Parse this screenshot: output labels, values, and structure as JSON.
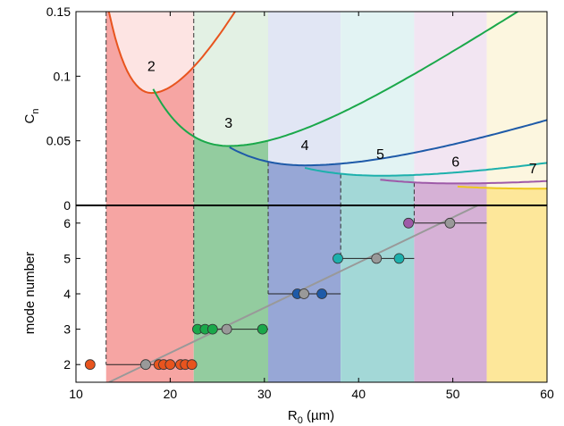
{
  "chart_data": {
    "type": "scatter",
    "x_axis": {
      "label_main": "R",
      "label_sub": "0",
      "label_unit": " (µm)",
      "range": [
        10,
        60
      ],
      "ticks": [
        10,
        20,
        30,
        40,
        50,
        60
      ],
      "tick_labels": [
        "10",
        "20",
        "30",
        "40",
        "50",
        "60"
      ]
    },
    "top_panel": {
      "y_label_main": "C",
      "y_label_sub": "n",
      "y_range": [
        0,
        0.15
      ],
      "y_ticks": [
        0,
        0.05,
        0.1,
        0.15
      ],
      "y_tick_labels": [
        "0",
        "0.05",
        "0.1",
        "0.15"
      ]
    },
    "bottom_panel": {
      "y_label": "mode number",
      "y_range": [
        1.5,
        6.5
      ],
      "y_ticks": [
        2,
        3,
        4,
        5,
        6
      ],
      "y_tick_labels": [
        "2",
        "3",
        "4",
        "5",
        "6"
      ]
    },
    "bands": [
      {
        "mode": 2,
        "label": "2",
        "x_start": 13.2,
        "x_end": 22.5,
        "color": "#f6a5a3",
        "light": "#fde4e3",
        "curve_color": "#e8541e",
        "min_x": 18.0,
        "min_y": 0.087,
        "label_x": 18.0,
        "label_y": 0.104,
        "dot_color": "#e8541e"
      },
      {
        "mode": 3,
        "label": "3",
        "x_start": 22.5,
        "x_end": 30.4,
        "color": "#93cc9f",
        "light": "#e3f1e4",
        "curve_color": "#1aa84a",
        "min_x": 26.2,
        "min_y": 0.046,
        "label_x": 26.2,
        "label_y": 0.06,
        "dot_color": "#1aa84a"
      },
      {
        "mode": 4,
        "label": "4",
        "x_start": 30.4,
        "x_end": 38.1,
        "color": "#97a7d6",
        "light": "#e1e6f4",
        "curve_color": "#1e5aa8",
        "min_x": 34.3,
        "min_y": 0.031,
        "label_x": 34.3,
        "label_y": 0.043,
        "dot_color": "#1e5aa8"
      },
      {
        "mode": 5,
        "label": "5",
        "x_start": 38.1,
        "x_end": 45.9,
        "color": "#a3d8d7",
        "light": "#e2f3f3",
        "curve_color": "#1db0ac",
        "min_x": 42.3,
        "min_y": 0.023,
        "label_x": 42.3,
        "label_y": 0.036,
        "dot_color": "#1db0ac"
      },
      {
        "mode": 6,
        "label": "6",
        "x_start": 45.9,
        "x_end": 53.6,
        "color": "#d6b1d6",
        "light": "#f2e5f2",
        "curve_color": "#9e5aa8",
        "min_x": 50.3,
        "min_y": 0.017,
        "label_x": 50.3,
        "label_y": 0.03,
        "dot_color": "#9e5aa8"
      },
      {
        "mode": 7,
        "label": "7",
        "x_start": 53.6,
        "x_end": 60.0,
        "color": "#fde79a",
        "light": "#fcf6df",
        "curve_color": "#eec81d",
        "min_x": 58.5,
        "min_y": 0.013,
        "label_x": 58.5,
        "label_y": 0.025,
        "dot_color": "#eec81d"
      }
    ],
    "points": [
      {
        "x": 11.5,
        "mode": 2,
        "color": "#e8541e"
      },
      {
        "x": 17.4,
        "mode": 2,
        "color": "#999999"
      },
      {
        "x": 18.8,
        "mode": 2,
        "color": "#e8541e"
      },
      {
        "x": 19.3,
        "mode": 2,
        "color": "#e8541e"
      },
      {
        "x": 20.0,
        "mode": 2,
        "color": "#e8541e"
      },
      {
        "x": 21.1,
        "mode": 2,
        "color": "#e8541e"
      },
      {
        "x": 21.6,
        "mode": 2,
        "color": "#e8541e"
      },
      {
        "x": 22.3,
        "mode": 2,
        "color": "#e8541e"
      },
      {
        "x": 22.9,
        "mode": 3,
        "color": "#1aa84a"
      },
      {
        "x": 23.7,
        "mode": 3,
        "color": "#1aa84a"
      },
      {
        "x": 24.5,
        "mode": 3,
        "color": "#1aa84a"
      },
      {
        "x": 26.0,
        "mode": 3,
        "color": "#999999"
      },
      {
        "x": 29.8,
        "mode": 3,
        "color": "#1aa84a"
      },
      {
        "x": 33.5,
        "mode": 4,
        "color": "#1e5aa8"
      },
      {
        "x": 34.2,
        "mode": 4,
        "color": "#999999"
      },
      {
        "x": 36.1,
        "mode": 4,
        "color": "#1e5aa8"
      },
      {
        "x": 37.8,
        "mode": 5,
        "color": "#1db0ac"
      },
      {
        "x": 41.9,
        "mode": 5,
        "color": "#999999"
      },
      {
        "x": 44.3,
        "mode": 5,
        "color": "#1db0ac"
      },
      {
        "x": 45.3,
        "mode": 6,
        "color": "#9e5aa8"
      },
      {
        "x": 49.7,
        "mode": 6,
        "color": "#999999"
      }
    ],
    "step_segments": [
      {
        "mode": 2,
        "x_start": 13.2,
        "x_end": 22.5
      },
      {
        "mode": 3,
        "x_start": 22.5,
        "x_end": 30.4
      },
      {
        "mode": 4,
        "x_start": 30.4,
        "x_end": 38.1
      },
      {
        "mode": 5,
        "x_start": 38.1,
        "x_end": 45.9
      },
      {
        "mode": 6,
        "x_start": 45.9,
        "x_end": 53.6
      }
    ],
    "trend_line": {
      "x": [
        13.5,
        53.6
      ],
      "mode": [
        1.5,
        6.62
      ],
      "color": "#999999"
    },
    "grid": false
  }
}
